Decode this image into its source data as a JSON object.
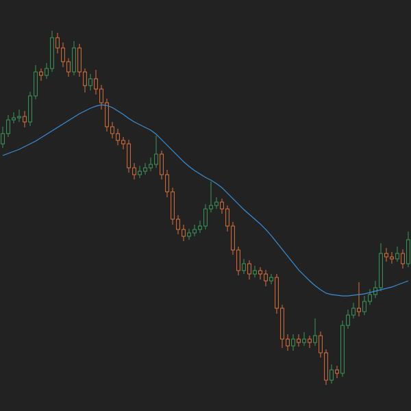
{
  "chart_data": {
    "type": "candlestick",
    "ylim": [
      0,
      600
    ],
    "up_color": "#3a9a5b",
    "down_color": "#e0703a",
    "open": [
      390,
      405,
      425,
      428,
      430,
      422,
      460,
      495,
      490,
      500,
      545,
      530,
      510,
      495,
      530,
      495,
      475,
      485,
      470,
      450,
      415,
      405,
      395,
      390,
      355,
      345,
      350,
      355,
      360,
      375,
      345,
      320,
      280,
      265,
      255,
      260,
      265,
      270,
      295,
      300,
      305,
      295,
      270,
      235,
      205,
      215,
      200,
      205,
      200,
      190,
      195,
      150,
      105,
      95,
      105,
      100,
      105,
      100,
      110,
      85,
      45,
      60,
      55,
      125,
      140,
      150,
      145,
      160,
      170,
      180,
      230,
      225,
      222,
      230,
      215
    ],
    "high": [
      415,
      432,
      436,
      440,
      438,
      466,
      505,
      500,
      508,
      555,
      552,
      538,
      515,
      540,
      536,
      500,
      492,
      498,
      476,
      456,
      422,
      412,
      400,
      396,
      362,
      358,
      362,
      370,
      402,
      380,
      352,
      326,
      286,
      272,
      266,
      272,
      278,
      302,
      335,
      312,
      310,
      300,
      276,
      240,
      222,
      220,
      212,
      210,
      206,
      200,
      200,
      155,
      112,
      112,
      112,
      115,
      110,
      135,
      116,
      90,
      68,
      66,
      132,
      148,
      158,
      188,
      168,
      178,
      190,
      245,
      238,
      232,
      240,
      236,
      262
    ],
    "low": [
      384,
      400,
      420,
      422,
      414,
      416,
      455,
      482,
      485,
      495,
      522,
      502,
      488,
      490,
      488,
      465,
      468,
      462,
      440,
      408,
      398,
      388,
      382,
      348,
      338,
      340,
      345,
      350,
      355,
      338,
      312,
      272,
      258,
      248,
      250,
      255,
      260,
      265,
      290,
      295,
      288,
      262,
      228,
      198,
      200,
      192,
      195,
      192,
      182,
      185,
      142,
      92,
      88,
      88,
      94,
      95,
      92,
      95,
      78,
      38,
      40,
      48,
      50,
      120,
      135,
      138,
      140,
      155,
      165,
      175,
      218,
      215,
      218,
      208,
      210
    ],
    "close": [
      405,
      425,
      428,
      430,
      422,
      460,
      495,
      490,
      500,
      545,
      530,
      510,
      495,
      530,
      495,
      475,
      485,
      470,
      450,
      415,
      405,
      395,
      390,
      355,
      345,
      350,
      355,
      360,
      375,
      345,
      320,
      280,
      265,
      255,
      260,
      265,
      270,
      295,
      300,
      305,
      295,
      270,
      235,
      205,
      215,
      200,
      205,
      200,
      190,
      195,
      150,
      105,
      95,
      105,
      100,
      105,
      100,
      110,
      85,
      45,
      60,
      55,
      125,
      140,
      150,
      145,
      160,
      170,
      180,
      230,
      225,
      222,
      230,
      215,
      250
    ],
    "line": {
      "color": "#3b8fd6",
      "values": [
        373,
        376,
        379,
        382,
        386,
        390,
        394,
        399,
        404,
        409,
        414,
        419,
        424,
        429,
        434,
        438,
        442,
        445,
        447,
        446,
        443,
        438,
        433,
        427,
        422,
        418,
        414,
        410,
        404,
        396,
        388,
        380,
        372,
        364,
        357,
        351,
        346,
        341,
        337,
        332,
        326,
        318,
        310,
        302,
        294,
        287,
        280,
        273,
        265,
        256,
        246,
        236,
        226,
        216,
        206,
        198,
        190,
        183,
        177,
        172,
        170,
        169,
        168,
        168,
        169,
        170,
        171,
        173,
        175,
        177,
        179,
        181,
        184,
        187,
        190
      ]
    }
  }
}
